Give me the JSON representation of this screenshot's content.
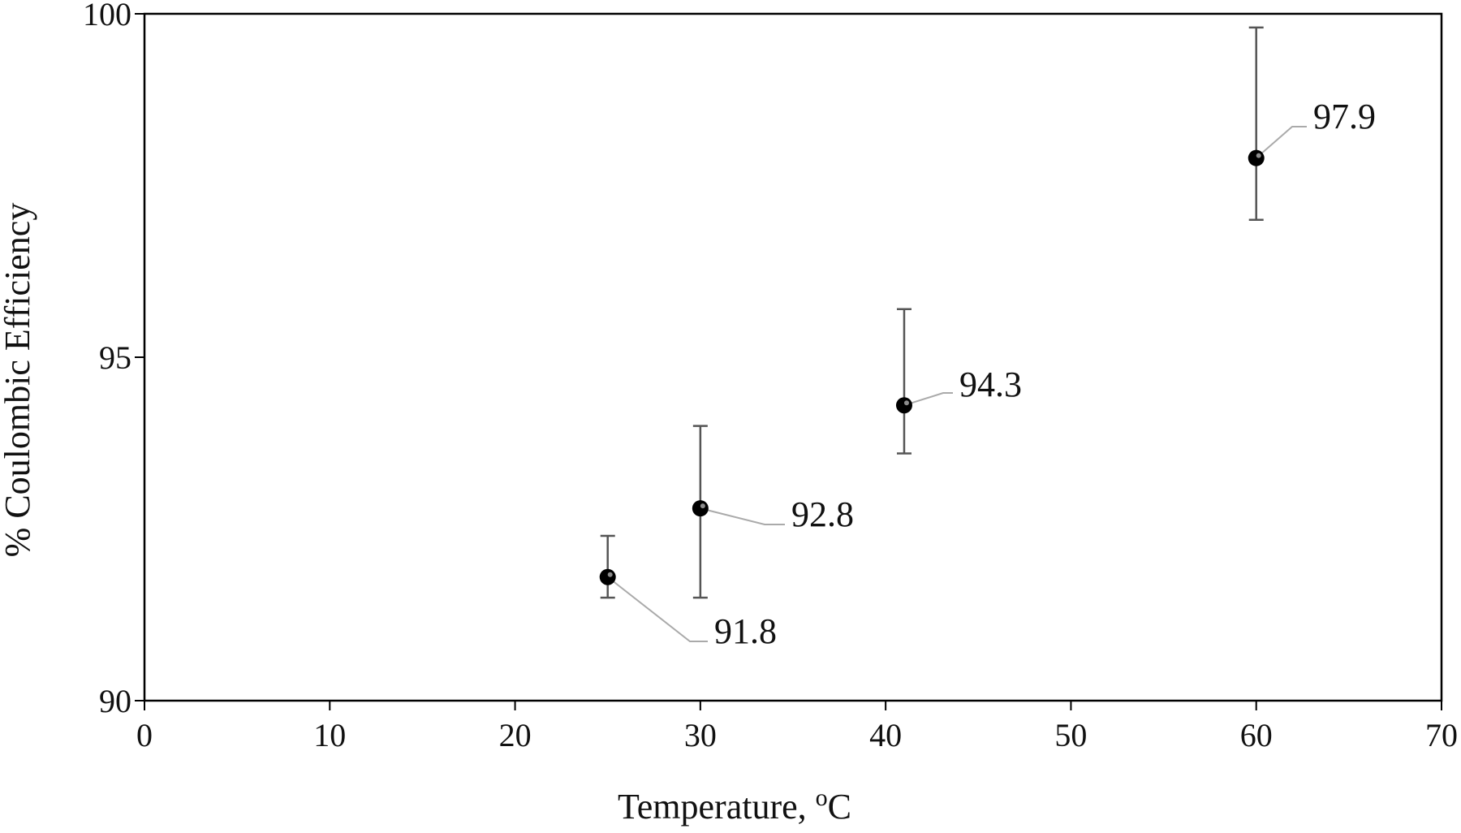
{
  "chart_data": {
    "type": "scatter",
    "title": "",
    "xlabel": "Temperature, ",
    "xlabel_unit_sup": "o",
    "xlabel_unit": "C",
    "ylabel": "% Coulombic Efficiency",
    "xlim": [
      0,
      70
    ],
    "ylim": [
      90,
      100
    ],
    "x_ticks": [
      0,
      10,
      20,
      30,
      40,
      50,
      60,
      70
    ],
    "y_ticks": [
      90,
      95,
      100
    ],
    "grid": false,
    "legend": "none",
    "series": [
      {
        "points": [
          {
            "x": 25,
            "y": 91.8,
            "y_err_low": 91.5,
            "y_err_high": 92.4,
            "label": "91.8"
          },
          {
            "x": 30,
            "y": 92.8,
            "y_err_low": 91.5,
            "y_err_high": 94.0,
            "label": "92.8"
          },
          {
            "x": 41,
            "y": 94.3,
            "y_err_low": 93.6,
            "y_err_high": 95.7,
            "label": "94.3"
          },
          {
            "x": 60,
            "y": 97.9,
            "y_err_low": 97.0,
            "y_err_high": 99.8,
            "label": "97.9"
          }
        ]
      }
    ],
    "colors": {
      "marker": "#000000",
      "error_bar": "#555555",
      "leader_line": "#aaaaaa",
      "axis": "#000000"
    }
  }
}
